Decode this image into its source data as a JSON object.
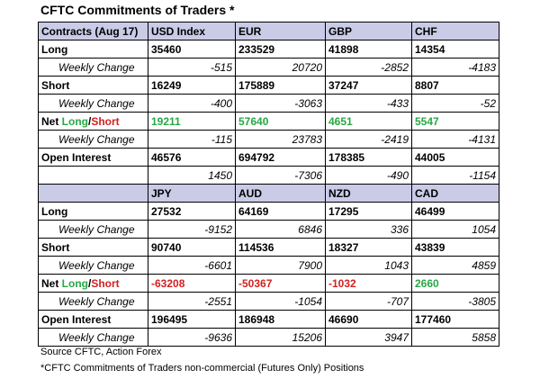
{
  "title": "CFTC Commitments of Traders *",
  "table1": {
    "header": [
      "Contracts (Aug 17)",
      "USD Index",
      "EUR",
      "GBP",
      "CHF"
    ],
    "long": {
      "label": "Long",
      "values": [
        "35460",
        "233529",
        "41898",
        "14354"
      ]
    },
    "long_change": {
      "label": "Weekly Change",
      "values": [
        "-515",
        "20720",
        "-2852",
        "-4183"
      ]
    },
    "short": {
      "label": "Short",
      "values": [
        "16249",
        "175889",
        "37247",
        "8807"
      ]
    },
    "short_change": {
      "label": "Weekly Change",
      "values": [
        "-400",
        "-3063",
        "-433",
        "-52"
      ]
    },
    "net": {
      "label_prefix": "Net ",
      "label_long": "Long",
      "label_sep": "/",
      "label_short": "Short",
      "values": [
        "19211",
        "57640",
        "4651",
        "5547"
      ]
    },
    "net_change": {
      "label": "Weekly Change",
      "values": [
        "-115",
        "23783",
        "-2419",
        "-4131"
      ]
    },
    "oi": {
      "label": "Open Interest",
      "values": [
        "46576",
        "694792",
        "178385",
        "44005"
      ]
    },
    "oi_change": {
      "label": "",
      "values": [
        "1450",
        "-7306",
        "-490",
        "-1154"
      ]
    }
  },
  "table2": {
    "header": [
      "",
      "JPY",
      "AUD",
      "NZD",
      "CAD"
    ],
    "long": {
      "label": "Long",
      "values": [
        "27532",
        "64169",
        "17295",
        "46499"
      ]
    },
    "long_change": {
      "label": "Weekly Change",
      "values": [
        "-9152",
        "6846",
        "336",
        "1054"
      ]
    },
    "short": {
      "label": "Short",
      "values": [
        "90740",
        "114536",
        "18327",
        "43839"
      ]
    },
    "short_change": {
      "label": "Weekly Change",
      "values": [
        "-6601",
        "7900",
        "1043",
        "4859"
      ]
    },
    "net": {
      "label_prefix": "Net ",
      "label_long": "Long",
      "label_sep": "/",
      "label_short": "Short",
      "values": [
        "-63208",
        "-50367",
        "-1032",
        "2660"
      ]
    },
    "net_change": {
      "label": "Weekly Change",
      "values": [
        "-2551",
        "-1054",
        "-707",
        "-3805"
      ]
    },
    "oi": {
      "label": "Open Interest",
      "values": [
        "196495",
        "186948",
        "46690",
        "177460"
      ]
    },
    "oi_change": {
      "label": "Weekly Change",
      "values": [
        "-9636",
        "15206",
        "3947",
        "5858"
      ]
    }
  },
  "colors": {
    "header_bg": "#c9cbe7",
    "positive": "#27a844",
    "negative": "#d42020"
  },
  "footer": {
    "source": "Source CFTC, Action Forex",
    "note": "*CFTC Commitments of Traders non-commercial (Futures Only) Positions"
  }
}
